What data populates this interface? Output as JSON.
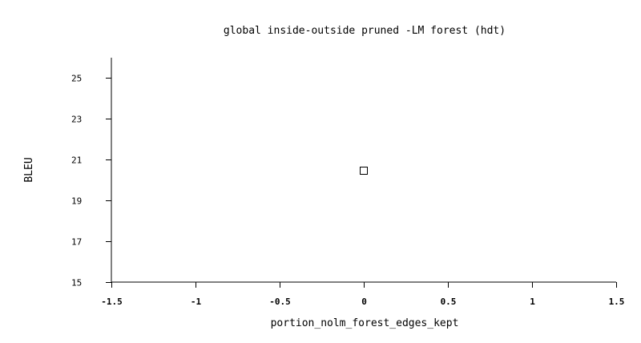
{
  "chart_data": {
    "type": "scatter",
    "title": "global inside-outside pruned -LM forest (hdt)",
    "xlabel": "portion_nolm_forest_edges_kept",
    "ylabel": "BLEU",
    "xlim": [
      -1.5,
      1.5
    ],
    "ylim": [
      15,
      26
    ],
    "xticks": [
      -1.5,
      -1,
      -0.5,
      0,
      0.5,
      1,
      1.5
    ],
    "xtick_labels": [
      "-1.5",
      "-1",
      "-0.5",
      "0",
      "0.5",
      "1",
      "1.5"
    ],
    "yticks": [
      15,
      17,
      19,
      21,
      23,
      25
    ],
    "ytick_labels": [
      "15",
      "17",
      "19",
      "21",
      "23",
      "25"
    ],
    "grid": false,
    "series": [
      {
        "marker": "open-square",
        "points": [
          {
            "x": 0,
            "y": 20.45
          }
        ]
      }
    ]
  }
}
